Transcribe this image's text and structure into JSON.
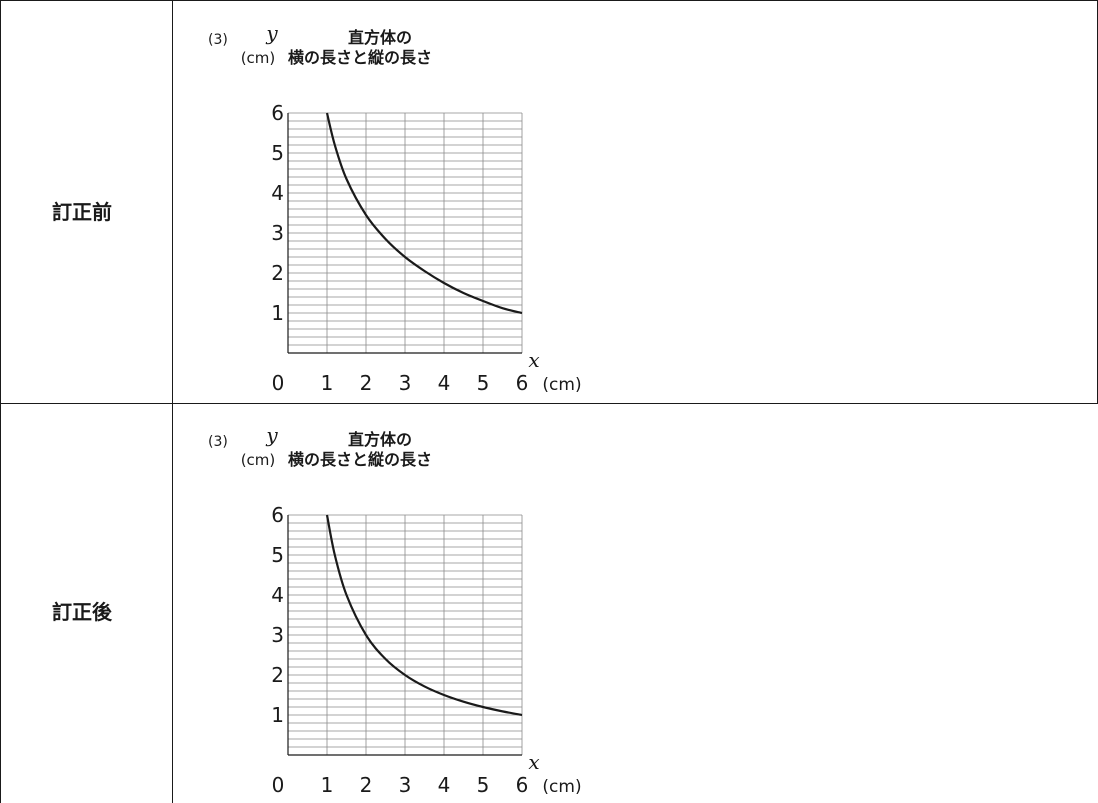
{
  "table": {
    "rows": [
      {
        "label": "訂正前"
      },
      {
        "label": "訂正後"
      }
    ]
  },
  "chart_data": [
    {
      "type": "line",
      "number_label": "(3)",
      "title_line1": "直方体の",
      "title_line2": "横の長さと縦の長さ",
      "ylabel": "y",
      "yunit": "(cm)",
      "xlabel": "x",
      "xunit": "(cm)",
      "origin_label": "0",
      "xticks": [
        "1",
        "2",
        "3",
        "4",
        "5",
        "6"
      ],
      "yticks": [
        "1",
        "2",
        "3",
        "4",
        "5",
        "6"
      ],
      "xlim": [
        0,
        6
      ],
      "ylim": [
        0,
        6
      ],
      "grid": true,
      "series": [
        {
          "x": [
            1,
            1.2,
            1.5,
            2,
            2.5,
            3,
            3.5,
            4,
            4.5,
            5,
            5.5,
            6
          ],
          "y": [
            6,
            5.2,
            4.35,
            3.45,
            2.85,
            2.4,
            2.05,
            1.75,
            1.5,
            1.3,
            1.12,
            1
          ]
        }
      ]
    },
    {
      "type": "line",
      "number_label": "(3)",
      "title_line1": "直方体の",
      "title_line2": "横の長さと縦の長さ",
      "ylabel": "y",
      "yunit": "(cm)",
      "xlabel": "x",
      "xunit": "(cm)",
      "origin_label": "0",
      "xticks": [
        "1",
        "2",
        "3",
        "4",
        "5",
        "6"
      ],
      "yticks": [
        "1",
        "2",
        "3",
        "4",
        "5",
        "6"
      ],
      "xlim": [
        0,
        6
      ],
      "ylim": [
        0,
        6
      ],
      "grid": true,
      "series": [
        {
          "x": [
            1,
            1.2,
            1.5,
            2,
            2.5,
            3,
            3.5,
            4,
            4.5,
            5,
            5.5,
            6
          ],
          "y": [
            6,
            5,
            4,
            3,
            2.4,
            2,
            1.714,
            1.5,
            1.333,
            1.2,
            1.091,
            1
          ]
        }
      ]
    }
  ]
}
